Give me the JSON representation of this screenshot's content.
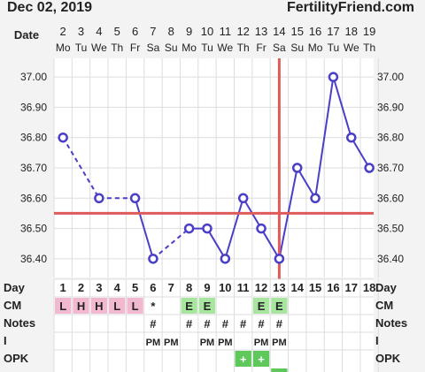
{
  "header": {
    "date": "Dec 02, 2019",
    "site": "FertilityFriend.com"
  },
  "labels": {
    "date": "Date",
    "day": "Day",
    "cm": "CM",
    "notes": "Notes",
    "i": "I",
    "opk": "OPK"
  },
  "colors": {
    "line": "#4a3fc7",
    "coverline": "#e05a5a",
    "cm_pink": "#f1b8cf",
    "cm_green": "#a8e6a0",
    "opk_green": "#5ec85a",
    "grid": "#ddd"
  },
  "chart_data": {
    "type": "line",
    "dates": [
      "2",
      "3",
      "4",
      "5",
      "6",
      "7",
      "8",
      "9",
      "10",
      "11",
      "12",
      "13",
      "14",
      "15",
      "16",
      "17",
      "18",
      "19"
    ],
    "weekdays": [
      "Mo",
      "Tu",
      "We",
      "Th",
      "Fr",
      "Sa",
      "Su",
      "Mo",
      "Tu",
      "We",
      "Th",
      "Fr",
      "Sa",
      "Su",
      "Mo",
      "Tu",
      "We",
      "Th"
    ],
    "days": [
      1,
      2,
      3,
      4,
      5,
      6,
      7,
      8,
      9,
      10,
      11,
      12,
      13,
      14,
      15,
      16,
      17,
      18
    ],
    "y_ticks": [
      "37.00",
      "36.90",
      "36.80",
      "36.70",
      "36.60",
      "36.50",
      "36.40"
    ],
    "ylim": [
      36.35,
      37.05
    ],
    "values": [
      36.8,
      null,
      36.6,
      null,
      36.6,
      36.4,
      null,
      36.5,
      36.5,
      36.4,
      36.6,
      36.5,
      36.4,
      36.7,
      36.6,
      37.0,
      36.8,
      36.7
    ],
    "coverline": 36.55,
    "ovulation_after_day": 13,
    "cm": [
      "L",
      "H",
      "H",
      "L",
      "L",
      "*",
      "",
      "E",
      "E",
      "",
      "",
      "E",
      "E",
      "",
      "",
      "",
      "",
      ""
    ],
    "notes": [
      "",
      "",
      "",
      "",
      "",
      "#",
      "",
      "#",
      "#",
      "#",
      "#",
      "#",
      "#",
      "",
      "",
      "",
      "",
      ""
    ],
    "intercourse": [
      "",
      "",
      "",
      "",
      "",
      "PM",
      "PM",
      "",
      "PM",
      "PM",
      "",
      "PM",
      "PM",
      "",
      "",
      "",
      "",
      ""
    ],
    "opk": [
      "",
      "",
      "",
      "",
      "",
      "",
      "",
      "",
      "",
      "",
      "+",
      "+",
      "",
      "",
      "",
      "",
      "",
      ""
    ]
  }
}
